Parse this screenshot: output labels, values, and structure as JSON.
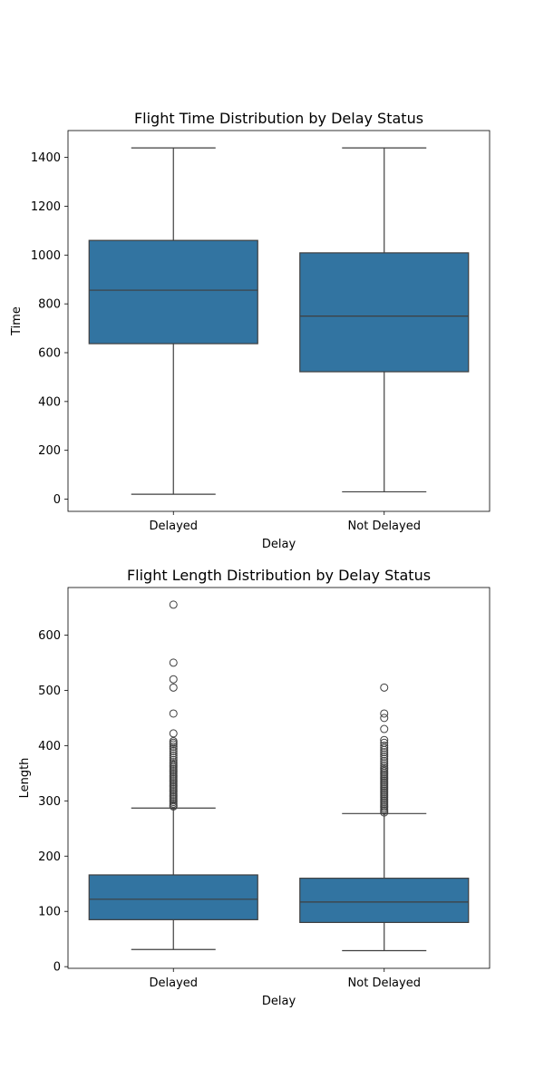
{
  "chart_data": [
    {
      "type": "box",
      "title": "Flight Time Distribution by Delay Status",
      "xlabel": "Delay",
      "ylabel": "Time",
      "categories": [
        "Delayed",
        "Not Delayed"
      ],
      "ylim": [
        -50,
        1510
      ],
      "yticks": [
        0,
        200,
        400,
        600,
        800,
        1000,
        1200,
        1400
      ],
      "grid": false,
      "color": "#3274a1",
      "boxes": [
        {
          "category": "Delayed",
          "whisker_low": 20,
          "q1": 637,
          "median": 856,
          "q3": 1060,
          "whisker_high": 1439,
          "outliers": []
        },
        {
          "category": "Not Delayed",
          "whisker_low": 30,
          "q1": 522,
          "median": 750,
          "q3": 1009,
          "whisker_high": 1439,
          "outliers": []
        }
      ]
    },
    {
      "type": "box",
      "title": "Flight Length Distribution by Delay Status",
      "xlabel": "Delay",
      "ylabel": "Length",
      "categories": [
        "Delayed",
        "Not Delayed"
      ],
      "ylim": [
        -3,
        686
      ],
      "yticks": [
        0,
        100,
        200,
        300,
        400,
        500,
        600
      ],
      "grid": false,
      "color": "#3274a1",
      "boxes": [
        {
          "category": "Delayed",
          "whisker_low": 31,
          "q1": 85,
          "median": 122,
          "q3": 166,
          "whisker_high": 287,
          "outliers": [
            290,
            292,
            295,
            298,
            301,
            304,
            307,
            310,
            313,
            316,
            319,
            322,
            325,
            328,
            331,
            334,
            337,
            340,
            343,
            346,
            349,
            352,
            355,
            358,
            361,
            364,
            367,
            370,
            374,
            378,
            382,
            386,
            390,
            394,
            398,
            402,
            405,
            408,
            422,
            458,
            505,
            520,
            550,
            655
          ]
        },
        {
          "category": "Not Delayed",
          "whisker_low": 29,
          "q1": 80,
          "median": 117,
          "q3": 160,
          "whisker_high": 277,
          "outliers": [
            279,
            282,
            285,
            288,
            291,
            294,
            297,
            300,
            303,
            306,
            309,
            312,
            315,
            318,
            321,
            324,
            327,
            330,
            333,
            336,
            339,
            342,
            345,
            348,
            351,
            354,
            357,
            360,
            364,
            368,
            372,
            376,
            380,
            384,
            388,
            392,
            396,
            400,
            405,
            410,
            430,
            450,
            458,
            505
          ]
        }
      ]
    }
  ]
}
